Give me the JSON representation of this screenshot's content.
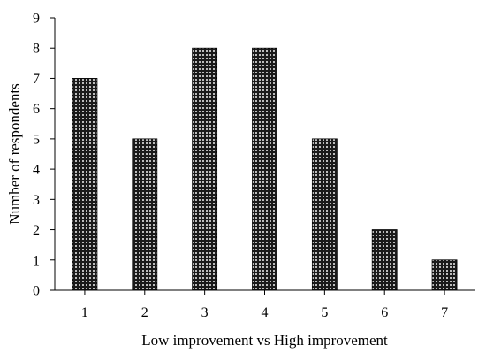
{
  "chart_data": {
    "type": "bar",
    "categories": [
      "1",
      "2",
      "3",
      "4",
      "5",
      "6",
      "7"
    ],
    "values": [
      7,
      5,
      8,
      8,
      5,
      2,
      1
    ],
    "title": "",
    "xlabel": "Low improvement vs High improvement",
    "ylabel": "Number of respondents",
    "ylim": [
      0,
      9
    ],
    "yticks": [
      "0",
      "1",
      "2",
      "3",
      "4",
      "5",
      "6",
      "7",
      "8",
      "9"
    ],
    "grid": false,
    "legend": "none",
    "bar_pattern": "dotted",
    "colors": {
      "bar_fill": "#1a1a1a",
      "bar_dots": "#ffffff",
      "bar_border": "#000000",
      "axis": "#000000"
    }
  }
}
